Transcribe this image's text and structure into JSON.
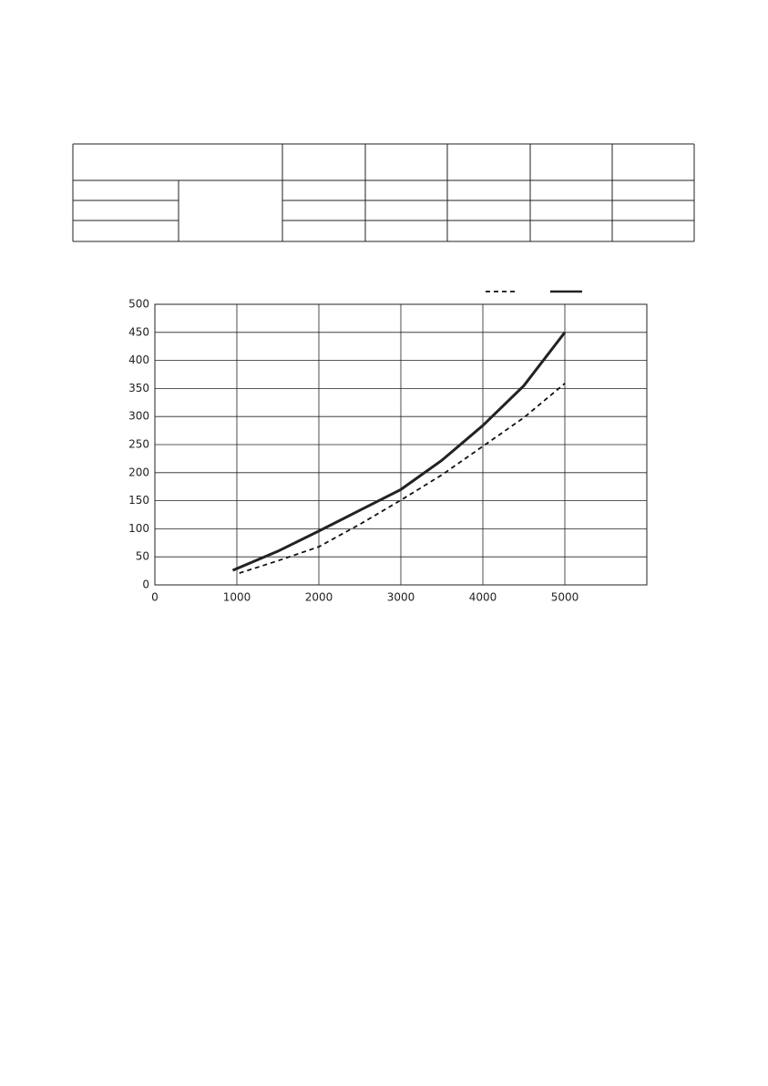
{
  "chart_data": {
    "type": "line",
    "xlim": [
      0,
      6000
    ],
    "xticks": [
      0,
      1000,
      2000,
      3000,
      4000,
      5000
    ],
    "ylim": [
      0,
      500
    ],
    "yticks": [
      0,
      50,
      100,
      150,
      200,
      250,
      300,
      350,
      400,
      450,
      500
    ],
    "grid": true,
    "legend": "top-right",
    "series": [
      {
        "color": "#111111",
        "style": "dashed",
        "x": [
          1030,
          1500,
          2000,
          2500,
          3000,
          3500,
          4000,
          4500,
          5000
        ],
        "values": [
          21,
          43,
          68,
          108,
          151,
          196,
          247,
          298,
          359
        ]
      },
      {
        "color": "#222222",
        "style": "solid",
        "x": [
          950,
          1500,
          2000,
          2500,
          3000,
          3500,
          4000,
          4500,
          5000
        ],
        "values": [
          26,
          60,
          96,
          133,
          170,
          222,
          284,
          355,
          450
        ]
      }
    ]
  }
}
